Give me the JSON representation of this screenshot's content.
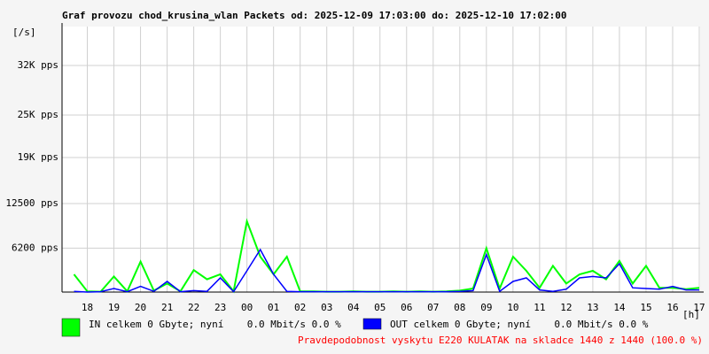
{
  "chart_data": {
    "type": "line",
    "title": "Graf provozu chod_krusina_wlan Packets od: 2025-12-09 17:03:00 do: 2025-12-10 17:02:00",
    "y_label": "[/s]",
    "x_label": "[h]",
    "annotation": "Pravdepodobnost vyskytu E220 KULATAK na skladce 1440 z 1440 (100.0 %)",
    "grid": true,
    "xlim": [
      17.05,
      41.0333
    ],
    "xticks": [
      18,
      19,
      20,
      21,
      22,
      23,
      {
        "value": 24,
        "label": "00"
      },
      {
        "value": 25,
        "label": "01"
      },
      {
        "value": 26,
        "label": "02"
      },
      {
        "value": 27,
        "label": "03"
      },
      {
        "value": 28,
        "label": "04"
      },
      {
        "value": 29,
        "label": "05"
      },
      {
        "value": 30,
        "label": "06"
      },
      {
        "value": 31,
        "label": "07"
      },
      {
        "value": 32,
        "label": "08"
      },
      {
        "value": 33,
        "label": "09"
      },
      {
        "value": 34,
        "label": "10"
      },
      {
        "value": 35,
        "label": "11"
      },
      {
        "value": 36,
        "label": "12"
      },
      {
        "value": 37,
        "label": "13"
      },
      {
        "value": 38,
        "label": "14"
      },
      {
        "value": 39,
        "label": "15"
      },
      {
        "value": 40,
        "label": "16"
      },
      {
        "value": 41,
        "label": "17"
      }
    ],
    "ylim": [
      0,
      37500
    ],
    "yticks": [
      {
        "value": 6200,
        "label": "6200 pps"
      },
      {
        "value": 12500,
        "label": "12500 pps"
      },
      {
        "value": 19000,
        "label": "19K pps"
      },
      {
        "value": 25000,
        "label": "25K pps"
      },
      {
        "value": 32000,
        "label": "32K pps"
      }
    ],
    "x": [
      17.5,
      18,
      18.5,
      19,
      19.5,
      20,
      20.5,
      21,
      21.5,
      22,
      22.5,
      23,
      23.5,
      24,
      24.5,
      25,
      25.5,
      26,
      26.5,
      27,
      27.5,
      28,
      28.5,
      29,
      29.5,
      30,
      30.5,
      31,
      31.5,
      32,
      32.5,
      33,
      33.5,
      34,
      34.5,
      35,
      35.5,
      36,
      36.5,
      37,
      37.5,
      38,
      38.5,
      39,
      39.5,
      40,
      40.5,
      41
    ],
    "series": [
      {
        "name": "IN celkem 0 Gbyte; nyní    0.0 Mbit/s 0.0 %",
        "color": "#00ff00",
        "values": [
          2500,
          100,
          50,
          2200,
          100,
          4300,
          200,
          1200,
          100,
          3100,
          1800,
          2500,
          100,
          10000,
          5000,
          2500,
          5000,
          100,
          100,
          50,
          50,
          100,
          50,
          50,
          100,
          50,
          100,
          50,
          100,
          200,
          500,
          6200,
          500,
          5000,
          3000,
          600,
          3700,
          1200,
          2500,
          3000,
          1800,
          4400,
          1200,
          3700,
          600,
          600,
          400,
          600
        ]
      },
      {
        "name": "OUT celkem 0 Gbyte; nyní    0.0 Mbit/s 0.0 %",
        "color": "#0000ff",
        "values": [
          100,
          0,
          50,
          500,
          50,
          800,
          100,
          1500,
          50,
          200,
          100,
          2000,
          50,
          3000,
          6000,
          2500,
          100,
          50,
          50,
          50,
          50,
          50,
          50,
          50,
          50,
          50,
          50,
          50,
          50,
          100,
          200,
          5300,
          100,
          1500,
          2000,
          300,
          100,
          400,
          2000,
          2200,
          2000,
          4000,
          600,
          500,
          400,
          800,
          300,
          300
        ]
      }
    ]
  }
}
